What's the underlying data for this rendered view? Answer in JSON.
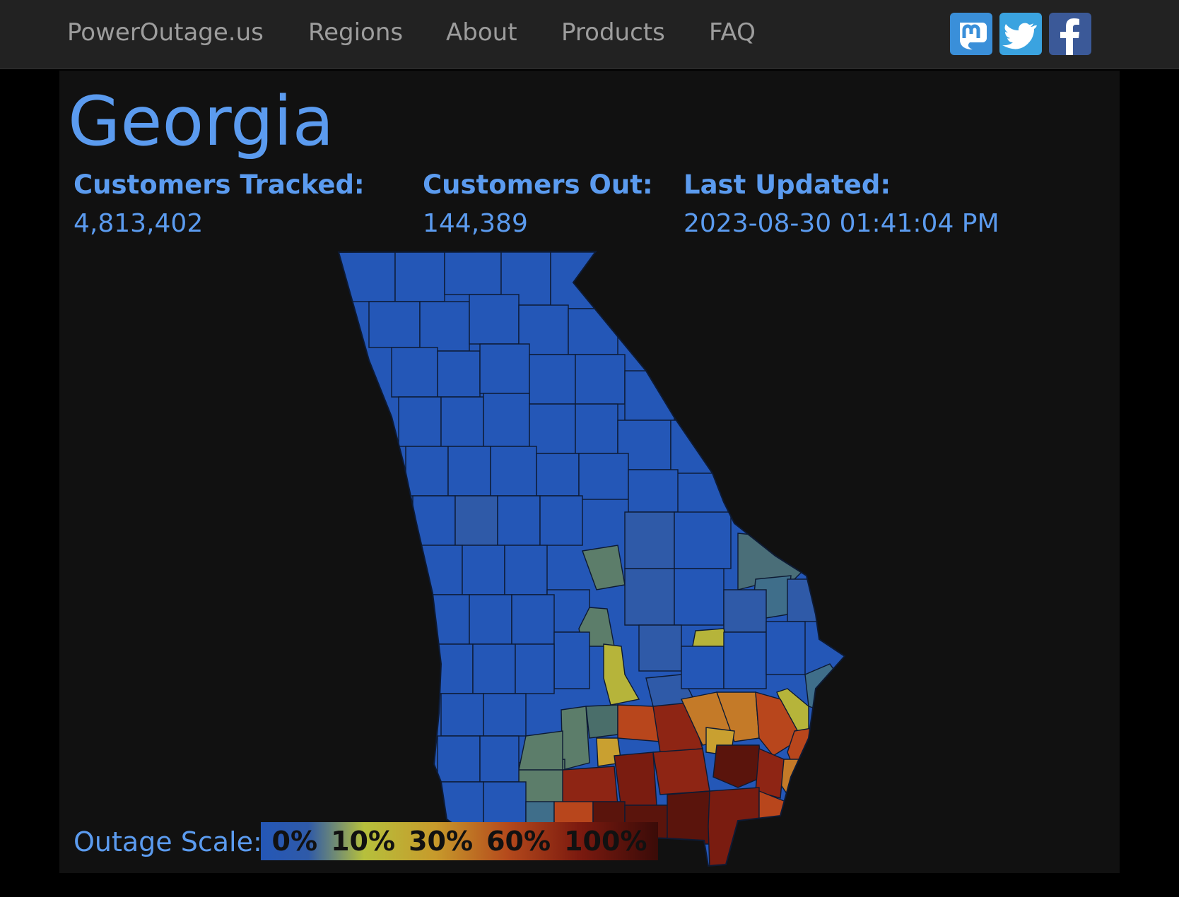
{
  "nav": {
    "brand": "PowerOutage.us",
    "links": [
      "Regions",
      "About",
      "Products",
      "FAQ"
    ],
    "social": [
      "mastodon-icon",
      "twitter-icon",
      "facebook-icon"
    ]
  },
  "page": {
    "title": "Georgia",
    "stats": [
      {
        "label": "Customers Tracked:",
        "value": "4,813,402"
      },
      {
        "label": "Customers Out:",
        "value": "144,389"
      },
      {
        "label": "Last Updated:",
        "value": "2023-08-30 01:41:04 PM"
      }
    ]
  },
  "legend": {
    "label": "Outage Scale:",
    "ticks": [
      "0%",
      "10%",
      "30%",
      "60%",
      "100%"
    ]
  },
  "map": {
    "region": "Georgia counties",
    "colors": {
      "none": "#2457b7",
      "very_low": "#2f5aa8",
      "low_teal": "#3f6e8a",
      "low_green": "#5c7d6a",
      "ten_pct": "#b6b43a",
      "thirty_pct": "#c47a28",
      "sixty_pct": "#b8461c",
      "eighty_pct": "#8e2514",
      "hundred_pct": "#5a140c",
      "border": "#0d1a33"
    }
  }
}
